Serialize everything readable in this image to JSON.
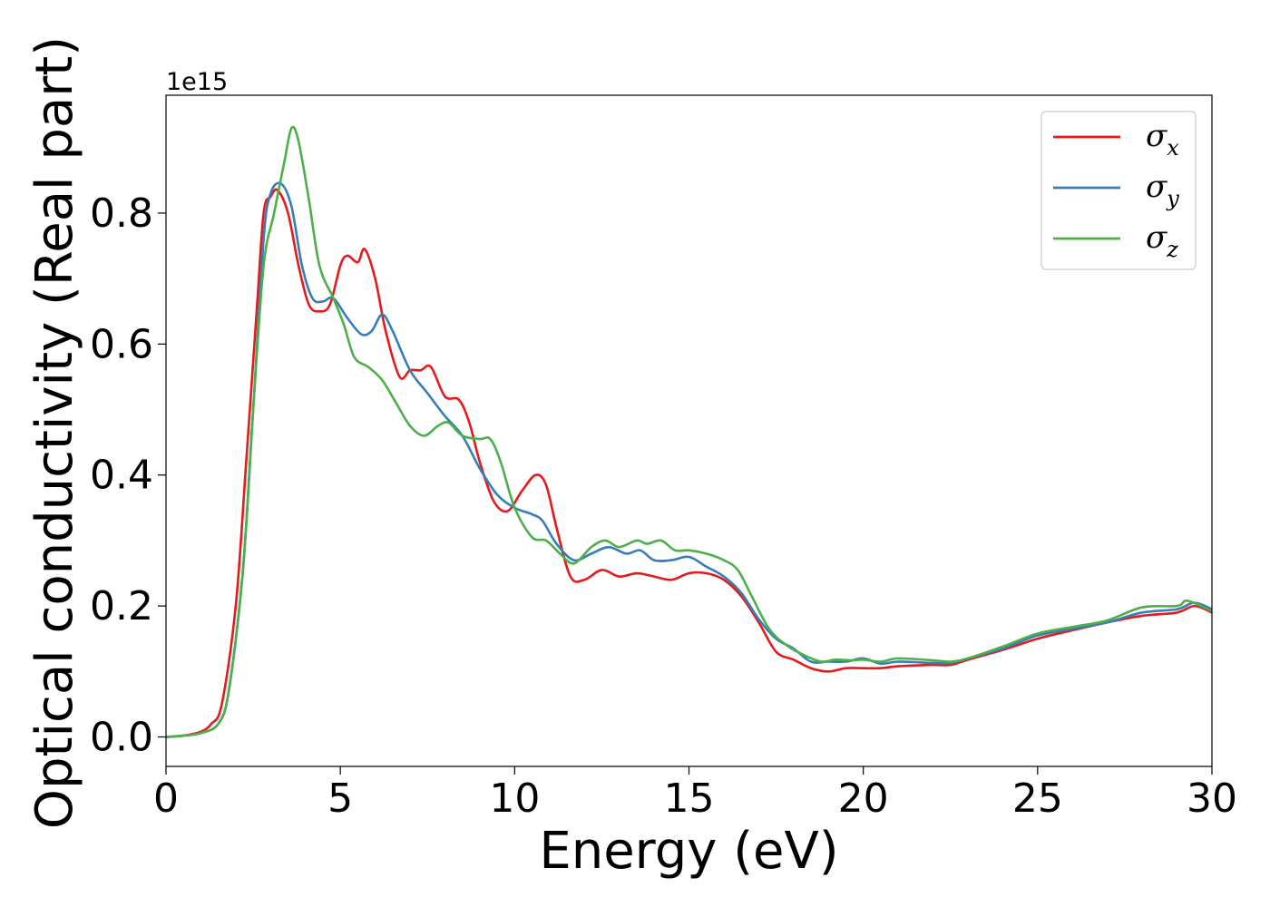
{
  "chart_data": {
    "type": "line",
    "title": "",
    "xlabel": "Energy (eV)",
    "ylabel": "Optical conductivity (Real part)",
    "y_offset_label": "1e15",
    "xlim": [
      0,
      30
    ],
    "ylim": [
      -0.045,
      0.98
    ],
    "xticks": [
      0,
      5,
      10,
      15,
      20,
      25,
      30
    ],
    "yticks": [
      0.0,
      0.2,
      0.4,
      0.6,
      0.8
    ],
    "xtick_labels": [
      "0",
      "5",
      "10",
      "15",
      "20",
      "25",
      "30"
    ],
    "ytick_labels": [
      "0.0",
      "0.2",
      "0.4",
      "0.6",
      "0.8"
    ],
    "grid": false,
    "legend_position": "top-right",
    "series": [
      {
        "name": "σx",
        "label_base": "σ",
        "label_sub": "x",
        "color": "#e41a1c",
        "points": [
          [
            0,
            0
          ],
          [
            0.5,
            0.002
          ],
          [
            1,
            0.008
          ],
          [
            1.3,
            0.02
          ],
          [
            1.6,
            0.05
          ],
          [
            2,
            0.2
          ],
          [
            2.3,
            0.42
          ],
          [
            2.6,
            0.65
          ],
          [
            2.8,
            0.8
          ],
          [
            3,
            0.825
          ],
          [
            3.2,
            0.835
          ],
          [
            3.5,
            0.8
          ],
          [
            3.8,
            0.72
          ],
          [
            4.1,
            0.66
          ],
          [
            4.4,
            0.65
          ],
          [
            4.7,
            0.66
          ],
          [
            5,
            0.72
          ],
          [
            5.2,
            0.735
          ],
          [
            5.5,
            0.725
          ],
          [
            5.7,
            0.745
          ],
          [
            6,
            0.7
          ],
          [
            6.3,
            0.62
          ],
          [
            6.7,
            0.55
          ],
          [
            7,
            0.56
          ],
          [
            7.3,
            0.56
          ],
          [
            7.6,
            0.565
          ],
          [
            8,
            0.52
          ],
          [
            8.4,
            0.515
          ],
          [
            8.7,
            0.48
          ],
          [
            9,
            0.42
          ],
          [
            9.4,
            0.36
          ],
          [
            9.8,
            0.345
          ],
          [
            10.2,
            0.375
          ],
          [
            10.6,
            0.4
          ],
          [
            10.9,
            0.385
          ],
          [
            11.2,
            0.32
          ],
          [
            11.6,
            0.245
          ],
          [
            12,
            0.24
          ],
          [
            12.5,
            0.255
          ],
          [
            13,
            0.245
          ],
          [
            13.5,
            0.25
          ],
          [
            14,
            0.245
          ],
          [
            14.5,
            0.24
          ],
          [
            15,
            0.25
          ],
          [
            15.5,
            0.25
          ],
          [
            16,
            0.24
          ],
          [
            16.5,
            0.215
          ],
          [
            17,
            0.175
          ],
          [
            17.5,
            0.13
          ],
          [
            18,
            0.118
          ],
          [
            18.5,
            0.105
          ],
          [
            19,
            0.1
          ],
          [
            19.5,
            0.105
          ],
          [
            20,
            0.105
          ],
          [
            20.5,
            0.105
          ],
          [
            21,
            0.108
          ],
          [
            22,
            0.11
          ],
          [
            22.5,
            0.11
          ],
          [
            23,
            0.118
          ],
          [
            24,
            0.133
          ],
          [
            25,
            0.15
          ],
          [
            26,
            0.163
          ],
          [
            27,
            0.175
          ],
          [
            28,
            0.185
          ],
          [
            29,
            0.19
          ],
          [
            29.5,
            0.2
          ],
          [
            30,
            0.19
          ]
        ]
      },
      {
        "name": "σy",
        "label_base": "σ",
        "label_sub": "y",
        "color": "#377eb8",
        "points": [
          [
            0,
            0
          ],
          [
            0.5,
            0.002
          ],
          [
            1,
            0.006
          ],
          [
            1.5,
            0.02
          ],
          [
            1.8,
            0.07
          ],
          [
            2.2,
            0.25
          ],
          [
            2.5,
            0.5
          ],
          [
            2.8,
            0.76
          ],
          [
            3,
            0.83
          ],
          [
            3.3,
            0.845
          ],
          [
            3.6,
            0.81
          ],
          [
            3.9,
            0.72
          ],
          [
            4.2,
            0.67
          ],
          [
            4.5,
            0.665
          ],
          [
            4.8,
            0.67
          ],
          [
            5.2,
            0.64
          ],
          [
            5.6,
            0.615
          ],
          [
            5.9,
            0.62
          ],
          [
            6.2,
            0.645
          ],
          [
            6.5,
            0.62
          ],
          [
            7,
            0.56
          ],
          [
            7.5,
            0.525
          ],
          [
            8,
            0.49
          ],
          [
            8.5,
            0.46
          ],
          [
            9,
            0.41
          ],
          [
            9.5,
            0.37
          ],
          [
            10,
            0.35
          ],
          [
            10.5,
            0.34
          ],
          [
            10.8,
            0.33
          ],
          [
            11.2,
            0.295
          ],
          [
            11.7,
            0.27
          ],
          [
            12.2,
            0.28
          ],
          [
            12.7,
            0.29
          ],
          [
            13.2,
            0.28
          ],
          [
            13.6,
            0.285
          ],
          [
            14,
            0.27
          ],
          [
            14.5,
            0.27
          ],
          [
            15,
            0.275
          ],
          [
            15.5,
            0.26
          ],
          [
            16,
            0.245
          ],
          [
            16.5,
            0.22
          ],
          [
            17,
            0.18
          ],
          [
            17.5,
            0.15
          ],
          [
            18,
            0.135
          ],
          [
            18.5,
            0.115
          ],
          [
            19,
            0.115
          ],
          [
            19.5,
            0.115
          ],
          [
            20,
            0.12
          ],
          [
            20.5,
            0.112
          ],
          [
            21,
            0.115
          ],
          [
            22,
            0.113
          ],
          [
            22.5,
            0.113
          ],
          [
            23,
            0.12
          ],
          [
            24,
            0.135
          ],
          [
            25,
            0.155
          ],
          [
            26,
            0.165
          ],
          [
            27,
            0.175
          ],
          [
            28,
            0.19
          ],
          [
            29,
            0.195
          ],
          [
            29.5,
            0.205
          ],
          [
            30,
            0.195
          ]
        ]
      },
      {
        "name": "σz",
        "label_base": "σ",
        "label_sub": "z",
        "color": "#4daf4a",
        "points": [
          [
            0,
            0
          ],
          [
            0.5,
            0.002
          ],
          [
            1,
            0.006
          ],
          [
            1.5,
            0.02
          ],
          [
            1.8,
            0.07
          ],
          [
            2.2,
            0.25
          ],
          [
            2.5,
            0.5
          ],
          [
            2.8,
            0.72
          ],
          [
            3.1,
            0.8
          ],
          [
            3.4,
            0.88
          ],
          [
            3.6,
            0.93
          ],
          [
            3.8,
            0.91
          ],
          [
            4.1,
            0.82
          ],
          [
            4.4,
            0.72
          ],
          [
            4.8,
            0.67
          ],
          [
            5.1,
            0.63
          ],
          [
            5.4,
            0.58
          ],
          [
            5.8,
            0.565
          ],
          [
            6.2,
            0.545
          ],
          [
            6.6,
            0.51
          ],
          [
            7,
            0.475
          ],
          [
            7.4,
            0.46
          ],
          [
            7.8,
            0.475
          ],
          [
            8.1,
            0.48
          ],
          [
            8.5,
            0.46
          ],
          [
            9,
            0.455
          ],
          [
            9.3,
            0.455
          ],
          [
            9.6,
            0.42
          ],
          [
            10,
            0.35
          ],
          [
            10.5,
            0.305
          ],
          [
            10.9,
            0.3
          ],
          [
            11.3,
            0.28
          ],
          [
            11.7,
            0.265
          ],
          [
            12.2,
            0.29
          ],
          [
            12.6,
            0.3
          ],
          [
            13,
            0.29
          ],
          [
            13.5,
            0.3
          ],
          [
            13.8,
            0.295
          ],
          [
            14.2,
            0.3
          ],
          [
            14.6,
            0.285
          ],
          [
            15,
            0.285
          ],
          [
            15.5,
            0.28
          ],
          [
            16,
            0.27
          ],
          [
            16.4,
            0.255
          ],
          [
            16.8,
            0.215
          ],
          [
            17.3,
            0.165
          ],
          [
            17.8,
            0.14
          ],
          [
            18.3,
            0.125
          ],
          [
            18.8,
            0.115
          ],
          [
            19.2,
            0.118
          ],
          [
            19.7,
            0.117
          ],
          [
            20,
            0.118
          ],
          [
            20.5,
            0.115
          ],
          [
            21,
            0.12
          ],
          [
            22,
            0.117
          ],
          [
            22.5,
            0.115
          ],
          [
            23,
            0.12
          ],
          [
            24,
            0.138
          ],
          [
            25,
            0.158
          ],
          [
            26,
            0.168
          ],
          [
            27,
            0.178
          ],
          [
            28,
            0.198
          ],
          [
            29,
            0.2
          ],
          [
            29.3,
            0.208
          ],
          [
            30,
            0.192
          ]
        ]
      }
    ]
  }
}
